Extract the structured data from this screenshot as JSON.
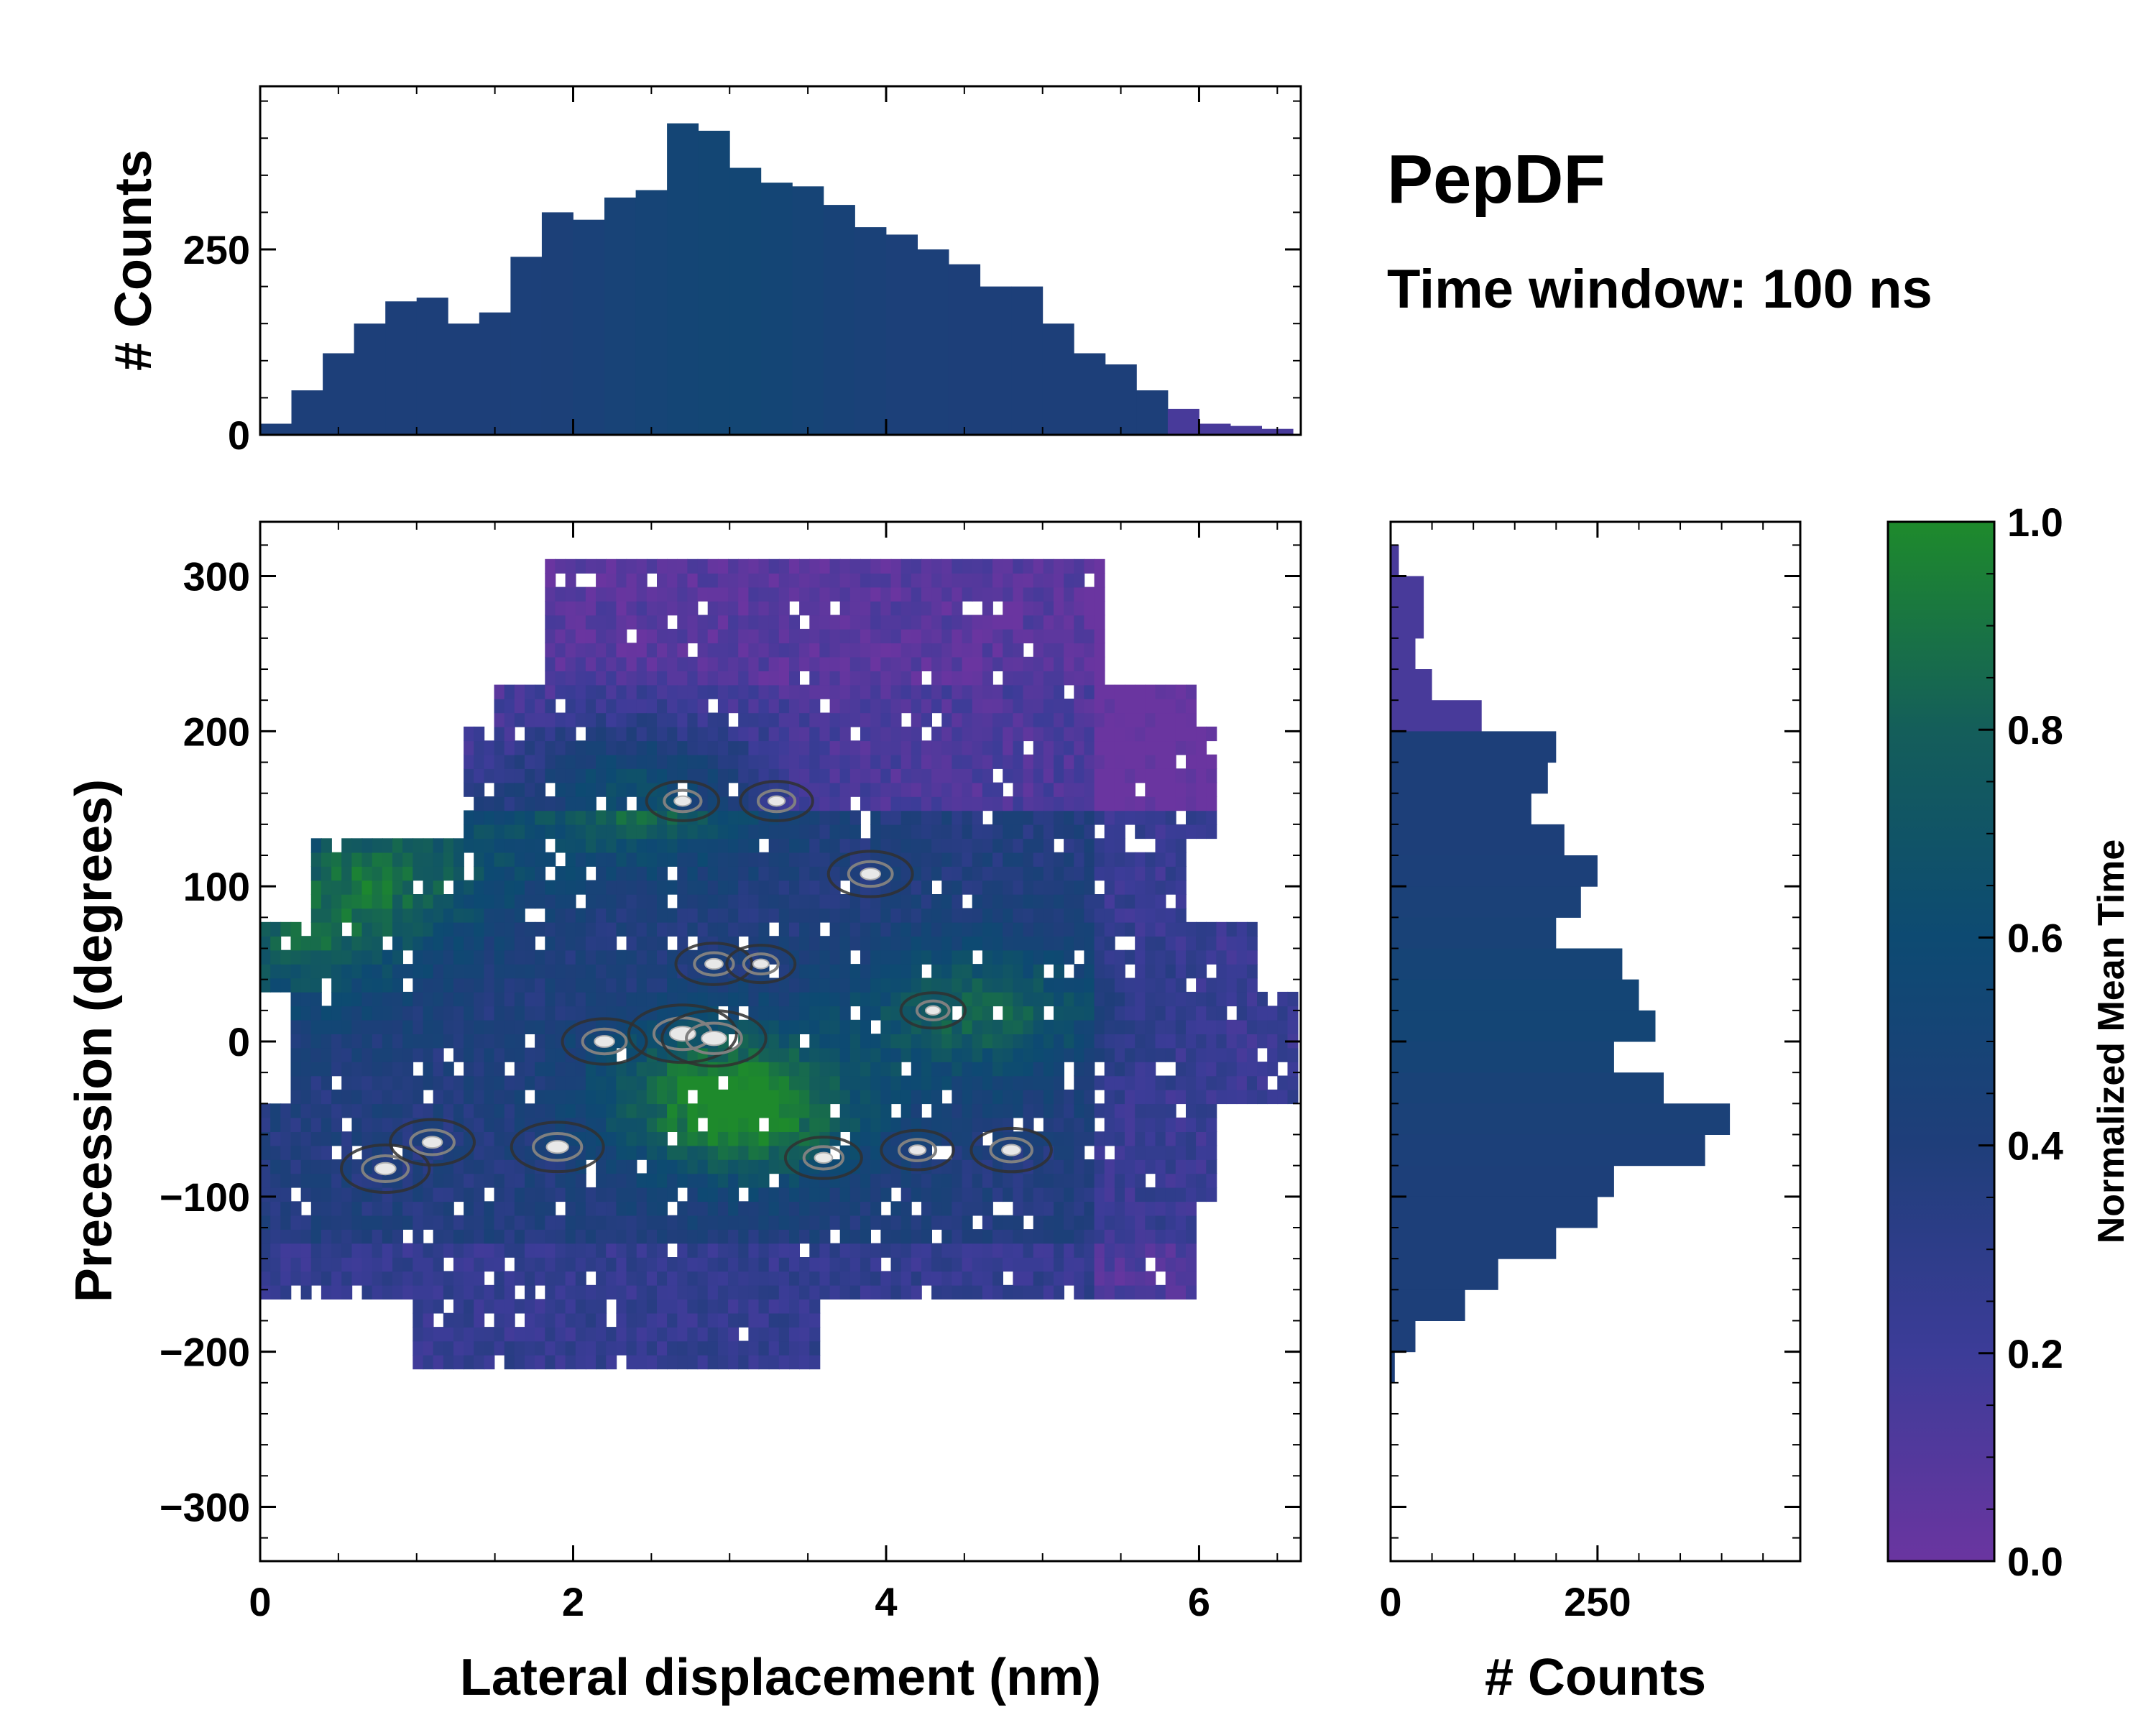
{
  "title": "PepDF",
  "subtitle": "Time window: 100 ns",
  "chart_data": [
    {
      "id": "main",
      "type": "heatmap",
      "xlabel": "Lateral displacement (nm)",
      "ylabel": "Precession (degrees)",
      "xlim": [
        0,
        6.65
      ],
      "ylim": [
        -335,
        335
      ],
      "xticks": [
        "0",
        "2",
        "4",
        "6"
      ],
      "xtick_values": [
        0,
        2,
        4,
        6
      ],
      "yticks": [
        "300",
        "200",
        "100",
        "0",
        "−100",
        "−200",
        "−300"
      ],
      "ytick_values": [
        300,
        200,
        100,
        0,
        -100,
        -200,
        -300
      ],
      "colorbar_label": "Normalized Mean Time",
      "colorbar_range": [
        0.0,
        1.0
      ],
      "colorbar_ticks": [
        "0.0",
        "0.2",
        "0.4",
        "0.6",
        "0.8",
        "1.0"
      ],
      "colorbar_tick_values": [
        0.0,
        0.2,
        0.4,
        0.6,
        0.8,
        1.0
      ],
      "colormap": [
        "#6a35a0",
        "#3c3c98",
        "#1f3e7a",
        "#0d4a72",
        "#145e5a",
        "#1e8a2c"
      ],
      "density_peaks": [
        {
          "x": 2.7,
          "y": 5,
          "value": 1.0
        },
        {
          "x": 2.9,
          "y": 2,
          "value": 0.95
        },
        {
          "x": 1.9,
          "y": -68,
          "value": 0.8
        },
        {
          "x": 0.8,
          "y": -82,
          "value": 0.75
        },
        {
          "x": 1.1,
          "y": -65,
          "value": 0.7
        },
        {
          "x": 3.9,
          "y": 108,
          "value": 0.7
        },
        {
          "x": 4.8,
          "y": -70,
          "value": 0.65
        },
        {
          "x": 2.2,
          "y": 0,
          "value": 0.7
        },
        {
          "x": 2.9,
          "y": 50,
          "value": 0.6
        },
        {
          "x": 2.7,
          "y": 155,
          "value": 0.55
        },
        {
          "x": 3.3,
          "y": 155,
          "value": 0.55
        },
        {
          "x": 3.6,
          "y": -75,
          "value": 0.6
        },
        {
          "x": 4.2,
          "y": -70,
          "value": 0.55
        },
        {
          "x": 3.2,
          "y": 50,
          "value": 0.5
        },
        {
          "x": 4.3,
          "y": 20,
          "value": 0.45
        }
      ]
    },
    {
      "id": "top-histogram",
      "type": "bar",
      "ylabel": "# Counts",
      "xlim": [
        0,
        6.65
      ],
      "ylim": [
        0,
        470
      ],
      "yticks": [
        "250",
        "0"
      ],
      "ytick_values": [
        250,
        0
      ],
      "x": [
        0.1,
        0.3,
        0.5,
        0.7,
        0.9,
        1.1,
        1.3,
        1.5,
        1.7,
        1.9,
        2.1,
        2.3,
        2.5,
        2.7,
        2.9,
        3.1,
        3.3,
        3.5,
        3.7,
        3.9,
        4.1,
        4.3,
        4.5,
        4.7,
        4.9,
        5.1,
        5.3,
        5.5,
        5.7,
        5.9,
        6.1,
        6.3,
        6.5
      ],
      "values": [
        15,
        60,
        110,
        150,
        180,
        185,
        150,
        165,
        240,
        300,
        290,
        320,
        330,
        420,
        410,
        360,
        340,
        335,
        310,
        280,
        270,
        250,
        230,
        200,
        200,
        150,
        110,
        95,
        60,
        35,
        15,
        12,
        8
      ]
    },
    {
      "id": "right-histogram",
      "type": "bar",
      "orientation": "horizontal",
      "xlabel": "# Counts",
      "xlim": [
        0,
        495
      ],
      "xticks": [
        "0",
        "250"
      ],
      "xtick_values": [
        0,
        250
      ],
      "y": [
        310,
        290,
        270,
        250,
        230,
        210,
        190,
        170,
        150,
        130,
        110,
        90,
        70,
        50,
        30,
        10,
        -10,
        -30,
        -50,
        -70,
        -90,
        -110,
        -130,
        -150,
        -170,
        -190,
        -210
      ],
      "values": [
        10,
        40,
        40,
        30,
        50,
        110,
        200,
        190,
        170,
        210,
        250,
        230,
        200,
        280,
        300,
        320,
        270,
        330,
        410,
        380,
        270,
        250,
        200,
        130,
        90,
        30,
        5
      ]
    }
  ]
}
